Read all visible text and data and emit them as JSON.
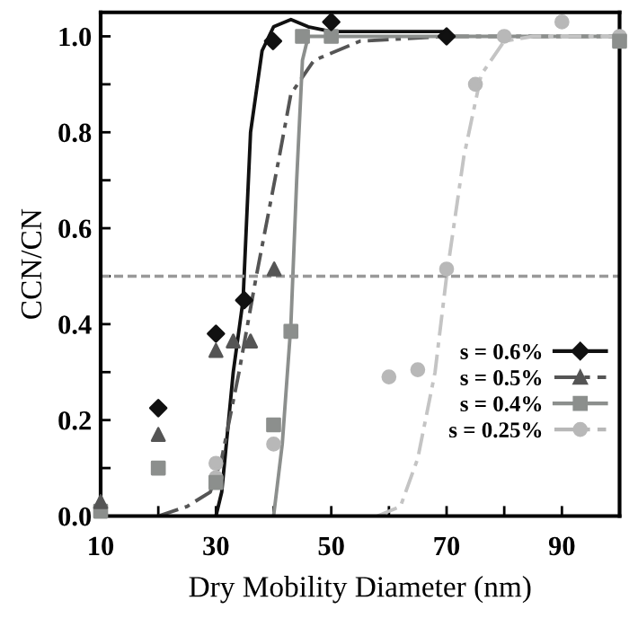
{
  "chart_data": {
    "type": "line",
    "xlabel": "Dry Mobility Diameter (nm)",
    "ylabel": "CCN/CN",
    "xlim": [
      10,
      100
    ],
    "ylim": [
      0,
      1.05
    ],
    "xticks": [
      10,
      {
        "value": 20,
        "label": null
      },
      30,
      {
        "value": 40,
        "label": null
      },
      50,
      {
        "value": 60,
        "label": null
      },
      70,
      {
        "value": 80,
        "label": null
      },
      90,
      {
        "value": 100,
        "label": null
      }
    ],
    "yticks": [
      {
        "value": 0,
        "label": "0.0"
      },
      {
        "value": 0.1,
        "label": null
      },
      0.2,
      {
        "value": 0.3,
        "label": null
      },
      0.4,
      {
        "value": 0.5,
        "label": null
      },
      0.6,
      {
        "value": 0.7,
        "label": null
      },
      0.8,
      {
        "value": 0.9,
        "label": null
      },
      {
        "value": 1.0,
        "label": "1.0"
      }
    ],
    "grid": false,
    "legend": "bottom right",
    "ref_lines": [
      {
        "axis": "y",
        "value": 0.5,
        "color": "#999999",
        "line_style": "dashed"
      }
    ],
    "series": [
      {
        "name": "s = 0.6%",
        "type": "scatter",
        "color": "#111111",
        "marker": "diamond",
        "x": [
          20,
          30,
          34.9,
          39.9,
          50,
          70
        ],
        "values": [
          0.225,
          0.38,
          0.45,
          0.99,
          1.03,
          1.0
        ]
      },
      {
        "name": "s = 0.5%",
        "type": "scatter",
        "color": "#555555",
        "marker": "triangle",
        "x": [
          10,
          20,
          30,
          33,
          36,
          40.1
        ],
        "values": [
          0.03,
          0.17,
          0.345,
          0.365,
          0.365,
          0.515
        ]
      },
      {
        "name": "s = 0.4%",
        "type": "scatter",
        "color": "#8c8f8d",
        "marker": "square",
        "x": [
          10,
          20,
          30,
          40,
          43,
          45,
          50,
          100
        ],
        "values": [
          0.01,
          0.1,
          0.07,
          0.19,
          0.385,
          1.0,
          1.0,
          0.99
        ]
      },
      {
        "name": "s = 0.25%",
        "type": "scatter",
        "color": "#b8b8b8",
        "marker": "circle",
        "x": [
          30,
          30,
          40,
          60,
          65,
          70,
          75,
          80,
          90,
          100
        ],
        "values": [
          0.11,
          0.08,
          0.15,
          0.29,
          0.305,
          0.515,
          0.9,
          1.0,
          1.03,
          1.0
        ]
      },
      {
        "color": "#111111",
        "line_style": "solid",
        "x": [
          30,
          31,
          33,
          34.7,
          36,
          38,
          40,
          43,
          46,
          50,
          70
        ],
        "values": [
          0,
          0.05,
          0.3,
          0.45,
          0.8,
          0.97,
          1.02,
          1.035,
          1.02,
          1.01,
          1.01
        ]
      },
      {
        "color": "#555555",
        "line_style": "dashed",
        "x": [
          20,
          25,
          29,
          31,
          34,
          37,
          41,
          43,
          47,
          55,
          70,
          100
        ],
        "values": [
          0,
          0.02,
          0.05,
          0.12,
          0.3,
          0.5,
          0.75,
          0.88,
          0.95,
          0.99,
          1.0,
          1.0
        ]
      },
      {
        "color": "#8c8f8d",
        "line_style": "solid",
        "x": [
          40,
          41.5,
          43,
          44,
          45,
          46,
          100
        ],
        "values": [
          0,
          0.15,
          0.4,
          0.7,
          0.95,
          1.0,
          1.0
        ]
      },
      {
        "color": "#c4c4c4",
        "line_style": "dashed",
        "x": [
          58,
          62,
          65,
          68,
          70,
          73,
          76,
          80,
          85,
          100
        ],
        "values": [
          0,
          0.02,
          0.12,
          0.3,
          0.5,
          0.75,
          0.92,
          0.99,
          1.0,
          1.0
        ]
      }
    ]
  }
}
